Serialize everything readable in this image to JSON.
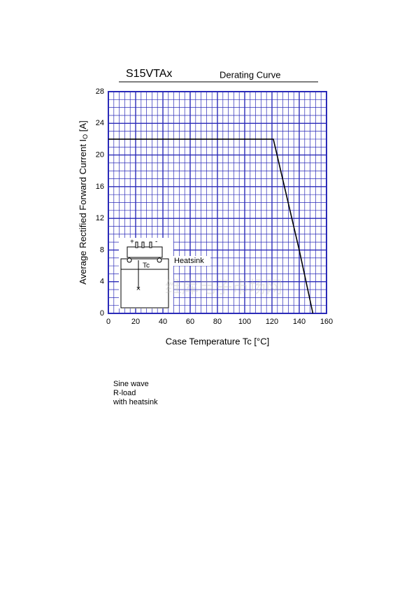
{
  "chart_data": {
    "type": "line",
    "title": "S15VTAx",
    "subtitle": "Derating Curve",
    "xlabel": "Case Temperature  Tc  [°C]",
    "ylabel": {
      "text": "Average Rectified Forward Current  I",
      "subscript": "O",
      "unit": " [A]"
    },
    "x": [
      0,
      121,
      140,
      150
    ],
    "values": [
      22,
      22,
      8,
      0
    ],
    "color": "#000000",
    "xlim": [
      0,
      160
    ],
    "xticks": [
      0,
      20,
      40,
      60,
      80,
      100,
      120,
      140,
      160
    ],
    "ylim": [
      0,
      28
    ],
    "yticks": [
      0,
      4,
      8,
      12,
      16,
      20,
      24,
      28
    ],
    "grid": true,
    "grid_color": "#2a2ab8",
    "x_minor_divisions": 5,
    "y_minor_divisions": 4,
    "inset": {
      "heatsink": "Heatsink",
      "tc": "Tc",
      "plus": "+",
      "minus": "-"
    },
    "notes": [
      "Sine wave",
      "R-load",
      "with  heatsink"
    ],
    "watermark": "维库电子市场网"
  }
}
